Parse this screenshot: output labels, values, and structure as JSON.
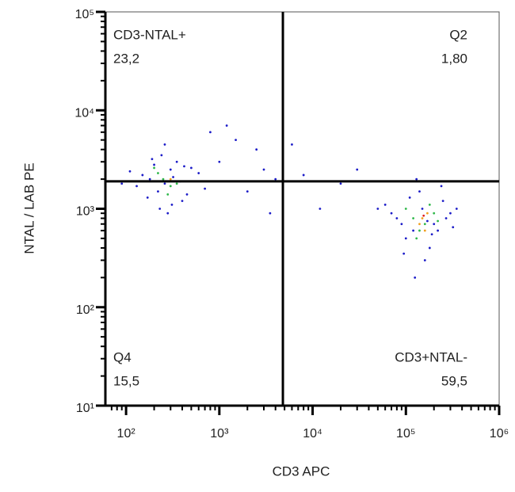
{
  "chart_data": {
    "type": "scatter",
    "x_label": "CD3 APC",
    "y_label": "NTAL / LAB PE",
    "log_x": true,
    "log_y": true,
    "xlim": [
      60,
      1000000
    ],
    "ylim": [
      10,
      100000
    ],
    "xticks": [
      {
        "value": 100,
        "label": "10²"
      },
      {
        "value": 1000,
        "label": "10³"
      },
      {
        "value": 10000,
        "label": "10⁴"
      },
      {
        "value": 100000,
        "label": "10⁵"
      },
      {
        "value": 1000000,
        "label": "10⁶"
      }
    ],
    "yticks": [
      {
        "value": 10,
        "label": "10¹"
      },
      {
        "value": 100,
        "label": "10²"
      },
      {
        "value": 1000,
        "label": "10³"
      },
      {
        "value": 10000,
        "label": "10⁴"
      },
      {
        "value": 100000,
        "label": "10⁵"
      }
    ],
    "gates": {
      "x": 4800,
      "y": 1900
    },
    "quadrants": [
      {
        "name": "CD3-NTAL+",
        "value": "23,2"
      },
      {
        "name": "Q2",
        "value": "1,80"
      },
      {
        "name": "Q4",
        "value": "15,5"
      },
      {
        "name": "CD3+NTAL-",
        "value": "59,5"
      }
    ],
    "series": [
      {
        "color": "#1c1cc8",
        "x": [
          180,
          220,
          300,
          260,
          350,
          400,
          150,
          130,
          500,
          450,
          280,
          240,
          320,
          200,
          170,
          380,
          600,
          700,
          110,
          90,
          260,
          310,
          420,
          230,
          190,
          1000,
          1500,
          2500,
          3000,
          4000,
          800,
          2000,
          8000,
          12000,
          20000,
          3500,
          6000,
          1200,
          30000,
          80000,
          120000,
          150000,
          200000,
          250000,
          300000,
          100000,
          60000,
          180000,
          140000,
          90000,
          220000,
          350000,
          70000,
          160000,
          130000,
          110000,
          270000,
          190000,
          50000,
          240000,
          170000,
          95000,
          320000,
          125000
        ],
        "y": [
          2000,
          1500,
          2500,
          1800,
          3000,
          1200,
          2200,
          1700,
          2600,
          1400,
          900,
          3500,
          2100,
          2800,
          1300,
          1900,
          2300,
          1600,
          2400,
          1800,
          4500,
          1100,
          2700,
          1000,
          3200,
          3000,
          5000,
          4000,
          2500,
          2000,
          6000,
          1500,
          2200,
          1000,
          1800,
          900,
          4500,
          7000,
          2500,
          800,
          600,
          1000,
          700,
          1200,
          900,
          500,
          1100,
          400,
          1500,
          700,
          600,
          1000,
          900,
          300,
          2000,
          1300,
          800,
          550,
          1000,
          1700,
          750,
          350,
          650,
          200
        ]
      },
      {
        "color": "#2fb84a",
        "x": [
          250,
          300,
          220,
          350,
          280,
          200,
          120000,
          160000,
          200000,
          140000,
          100000,
          180000,
          220000,
          130000
        ],
        "y": [
          2000,
          1700,
          2300,
          1800,
          1400,
          2600,
          800,
          700,
          900,
          600,
          1000,
          1100,
          750,
          500
        ]
      },
      {
        "color": "#f0a020",
        "x": [
          150000,
          170000,
          140000,
          160000,
          300
        ],
        "y": [
          800,
          900,
          700,
          600,
          2000
        ]
      },
      {
        "color": "#e02020",
        "x": [
          155000
        ],
        "y": [
          850
        ]
      }
    ]
  }
}
